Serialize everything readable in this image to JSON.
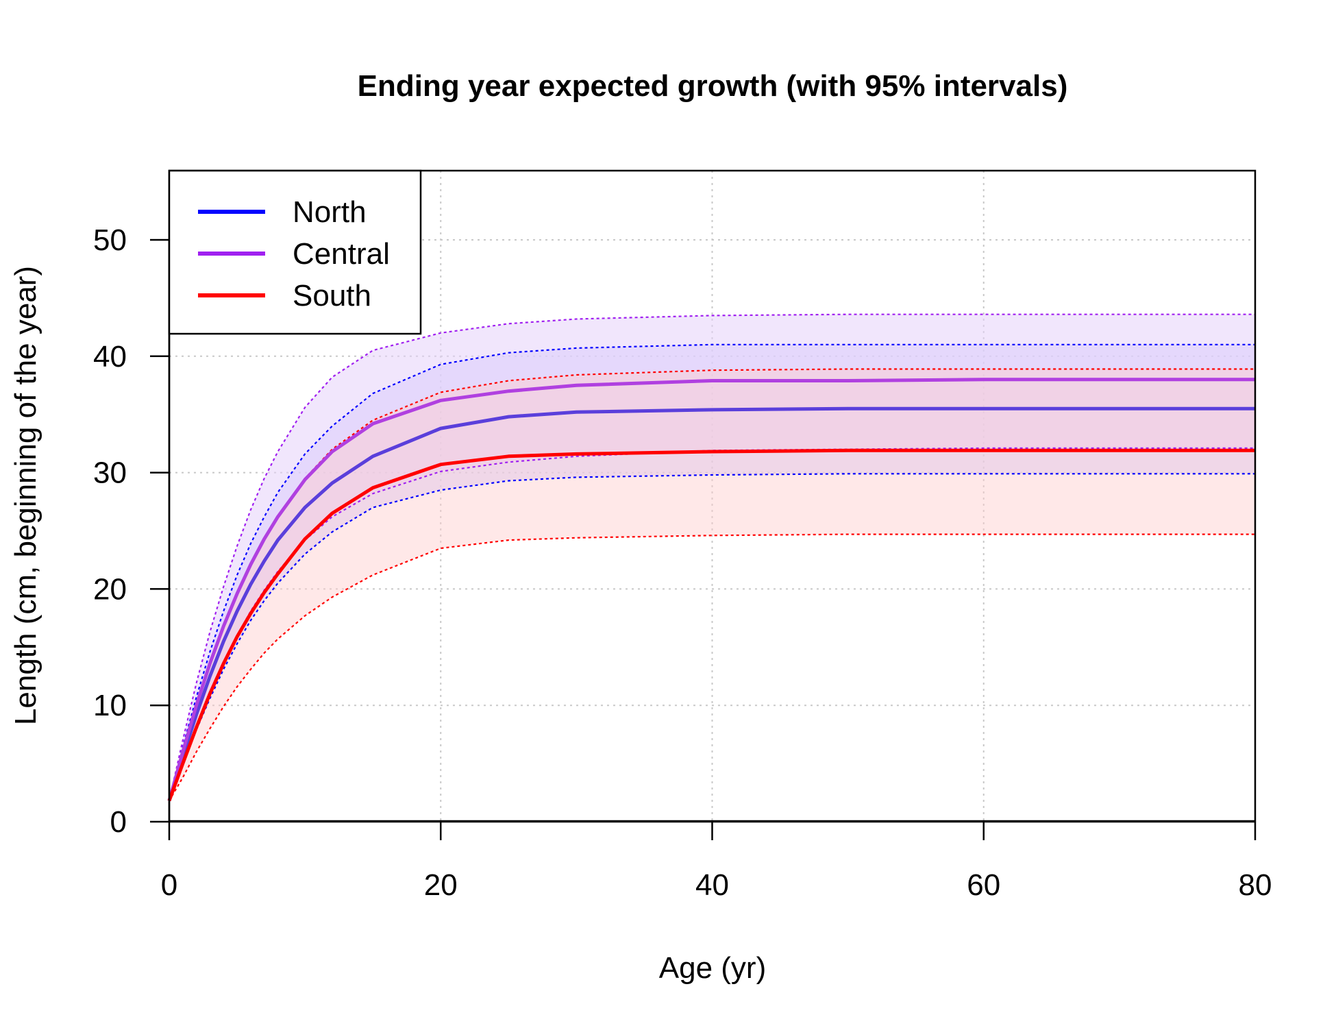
{
  "chart_data": {
    "type": "line",
    "title": "Ending year expected growth (with 95% intervals)",
    "xlabel": "Age (yr)",
    "ylabel": "Length (cm, beginning of the year)",
    "xlim": [
      0,
      80
    ],
    "ylim": [
      0,
      55
    ],
    "xticks": [
      0,
      20,
      40,
      60,
      80
    ],
    "yticks": [
      0,
      10,
      20,
      30,
      40,
      50
    ],
    "xtick_labels": [
      "0",
      "20",
      "40",
      "60",
      "80"
    ],
    "ytick_labels": [
      "0",
      "10",
      "20",
      "30",
      "40",
      "50"
    ],
    "grid": true,
    "legend_position": "top-left",
    "x": [
      0,
      1,
      2,
      3,
      4,
      5,
      6,
      7,
      8,
      10,
      12,
      15,
      20,
      25,
      30,
      40,
      50,
      60,
      70,
      80
    ],
    "series": [
      {
        "name": "North",
        "color": "#0000ff",
        "line_color": "#5a3fdb",
        "fill": "rgba(205,200,255,0.55)",
        "values": [
          1.8,
          5.6,
          9.2,
          12.5,
          15.5,
          18.1,
          20.4,
          22.4,
          24.2,
          27.0,
          29.1,
          31.4,
          33.8,
          34.8,
          35.2,
          35.4,
          35.5,
          35.5,
          35.5,
          35.5
        ],
        "lower": [
          1.8,
          4.9,
          7.9,
          10.6,
          13.1,
          15.3,
          17.3,
          19.0,
          20.5,
          23.0,
          24.9,
          27.0,
          28.5,
          29.3,
          29.6,
          29.8,
          29.9,
          29.9,
          29.9,
          29.9
        ],
        "upper": [
          1.8,
          6.4,
          10.7,
          14.6,
          18.1,
          21.2,
          23.9,
          26.2,
          28.3,
          31.6,
          34.0,
          36.8,
          39.3,
          40.3,
          40.7,
          41.0,
          41.0,
          41.0,
          41.0,
          41.0
        ]
      },
      {
        "name": "Central",
        "color": "#a020f0",
        "line_color": "#b040e0",
        "fill": "rgba(230,210,250,0.55)",
        "values": [
          1.8,
          6.0,
          10.0,
          13.6,
          16.8,
          19.6,
          22.1,
          24.3,
          26.2,
          29.4,
          31.8,
          34.2,
          36.2,
          37.0,
          37.5,
          37.9,
          37.9,
          38.0,
          38.0,
          38.0
        ],
        "lower": [
          1.8,
          5.0,
          8.2,
          11.1,
          13.7,
          16.0,
          18.1,
          19.9,
          21.5,
          24.2,
          26.2,
          28.2,
          30.1,
          30.9,
          31.4,
          31.9,
          32.0,
          32.1,
          32.1,
          32.1
        ],
        "upper": [
          1.8,
          7.0,
          11.9,
          16.3,
          20.2,
          23.7,
          26.8,
          29.5,
          31.8,
          35.6,
          38.2,
          40.5,
          42.0,
          42.8,
          43.2,
          43.5,
          43.6,
          43.6,
          43.6,
          43.6
        ]
      },
      {
        "name": "South",
        "color": "#ff0000",
        "line_color": "#ff0000",
        "fill": "rgba(255,205,205,0.45)",
        "values": [
          1.8,
          5.0,
          8.1,
          11.0,
          13.6,
          15.9,
          17.9,
          19.7,
          21.3,
          24.3,
          26.5,
          28.7,
          30.7,
          31.4,
          31.6,
          31.8,
          31.9,
          31.9,
          31.9,
          31.9
        ],
        "lower": [
          1.8,
          3.8,
          6.0,
          8.0,
          9.9,
          11.6,
          13.1,
          14.5,
          15.7,
          17.7,
          19.3,
          21.2,
          23.5,
          24.2,
          24.4,
          24.6,
          24.7,
          24.7,
          24.7,
          24.7
        ],
        "upper": [
          1.8,
          6.0,
          10.0,
          13.6,
          16.8,
          19.6,
          22.1,
          24.3,
          26.2,
          29.5,
          32.0,
          34.5,
          36.9,
          37.9,
          38.4,
          38.8,
          38.9,
          38.9,
          38.9,
          38.9
        ]
      }
    ]
  }
}
